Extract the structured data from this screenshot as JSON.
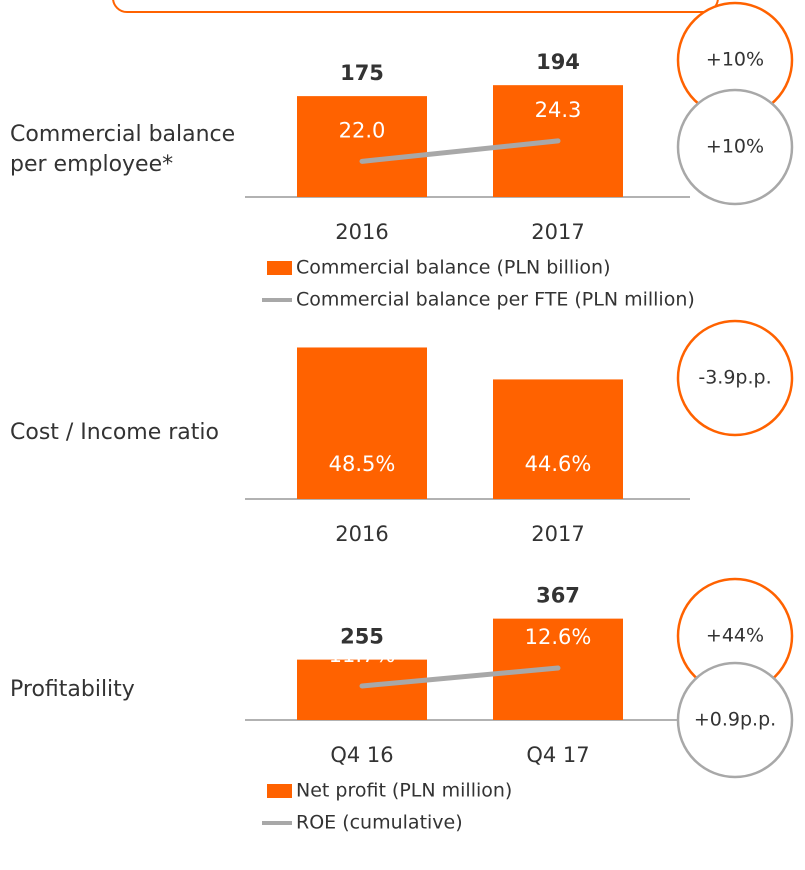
{
  "chart_data": [
    {
      "type": "bar",
      "title": "Commercial balance per employee*",
      "categories": [
        "2016",
        "2017"
      ],
      "series": [
        {
          "name": "Commercial balance (PLN billion)",
          "color": "#ff6200",
          "values": [
            175,
            194
          ]
        },
        {
          "name": "Commercial balance per FTE (PLN million)",
          "color": "#a8a8a8",
          "type": "line",
          "axis": "y2",
          "values": [
            22.0,
            24.3
          ],
          "value_labels": [
            "22.0",
            "24.3"
          ]
        }
      ],
      "ylim": [
        0,
        340
      ],
      "y2lim": [
        18,
        40
      ],
      "annotations": [
        {
          "text": "+10%",
          "color": "#ff6200"
        },
        {
          "text": "+10%",
          "color": "#a8a8a8"
        }
      ]
    },
    {
      "type": "bar",
      "title": "Cost / Income ratio",
      "categories": [
        "2016",
        "2017"
      ],
      "series": [
        {
          "color": "#ff6200",
          "values": [
            48.5,
            44.6
          ],
          "value_labels": [
            "48.5%",
            "44.6%"
          ]
        }
      ],
      "ylim": [
        30,
        51
      ],
      "annotations": [
        {
          "text": "-3.9p.p.",
          "color": "#ff6200"
        }
      ]
    },
    {
      "type": "bar",
      "title": "Profitability",
      "categories": [
        "Q4 16",
        "Q4 17"
      ],
      "series": [
        {
          "name": "Net profit (PLN million)",
          "color": "#ff6200",
          "values": [
            255,
            367
          ]
        },
        {
          "name": "ROE (cumulative)",
          "color": "#a8a8a8",
          "type": "line",
          "axis": "y2",
          "values": [
            11.7,
            12.6
          ],
          "value_labels": [
            "11.7%",
            "12.6%"
          ]
        }
      ],
      "ylim": [
        90,
        560
      ],
      "y2lim": [
        10,
        18.6
      ],
      "annotations": [
        {
          "text": "+44%",
          "color": "#ff6200"
        },
        {
          "text": "+0.9p.p.",
          "color": "#a8a8a8"
        }
      ]
    }
  ]
}
